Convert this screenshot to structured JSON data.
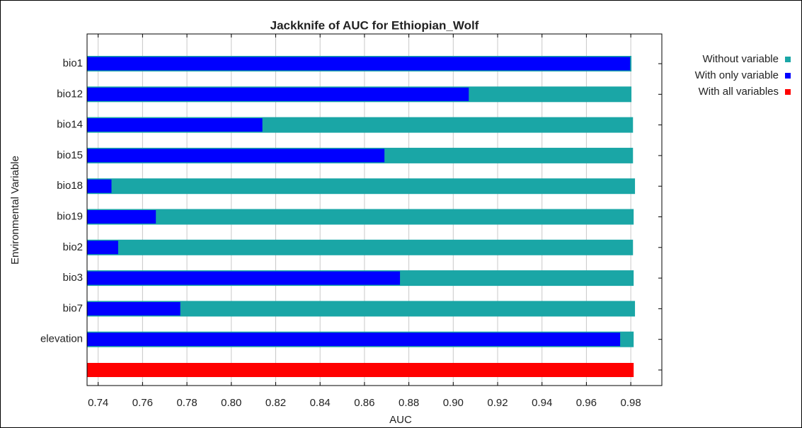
{
  "chart_data": {
    "type": "bar",
    "orientation": "horizontal",
    "title": "Jackknife of AUC for Ethiopian_Wolf",
    "x_label": "AUC",
    "y_label": "Environmental Variable",
    "categories": [
      "bio1",
      "bio12",
      "bio14",
      "bio15",
      "bio18",
      "bio19",
      "bio2",
      "bio3",
      "bio7",
      "elevation",
      null
    ],
    "series": [
      {
        "name": "Without variable",
        "color": "#1aa6a6",
        "values": [
          0.9803,
          0.9803,
          0.981,
          0.981,
          0.9819,
          0.9813,
          0.981,
          0.9813,
          0.9819,
          0.9813,
          null
        ]
      },
      {
        "name": "With only variable",
        "color": "#0000ff",
        "values": [
          0.9797,
          0.907,
          0.814,
          0.869,
          0.746,
          0.766,
          0.749,
          0.876,
          0.777,
          0.9752,
          null
        ]
      },
      {
        "name": "With all variables",
        "color": "#ff0000",
        "values": [
          null,
          null,
          null,
          null,
          null,
          null,
          null,
          null,
          null,
          null,
          0.9813
        ]
      }
    ],
    "xlim": [
      0.735,
      0.994
    ],
    "xticks": [
      0.74,
      0.76,
      0.78,
      {
        "value": 0.8,
        "label": "0.80"
      },
      0.82,
      0.84,
      0.86,
      0.88,
      {
        "value": 0.9,
        "label": "0.90"
      },
      0.92,
      0.94,
      0.96,
      0.98
    ],
    "grid": true,
    "legend": "upper right"
  }
}
